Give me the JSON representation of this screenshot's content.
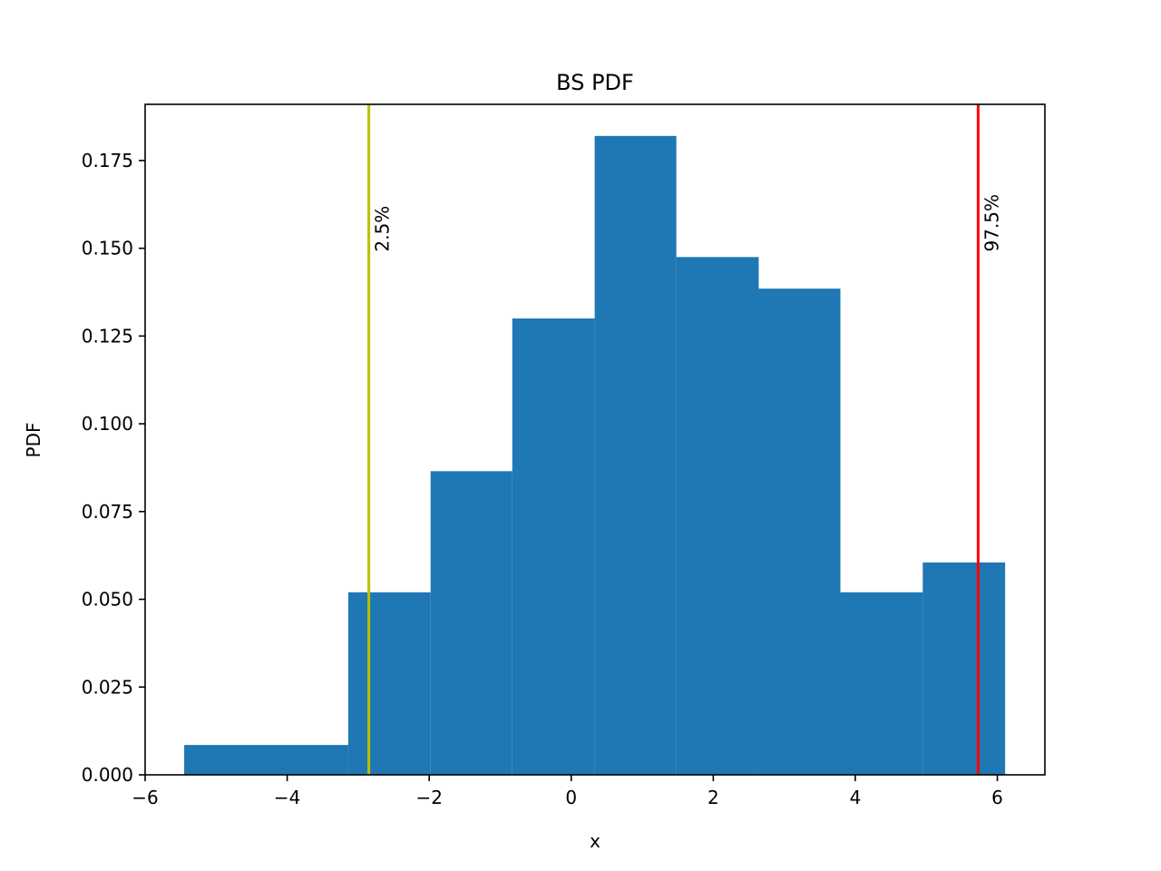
{
  "chart_data": {
    "type": "bar",
    "title": "BS PDF",
    "xlabel": "x",
    "ylabel": "PDF",
    "xlim": [
      -6.0,
      6.67
    ],
    "ylim": [
      0.0,
      0.191
    ],
    "grid": false,
    "bar_color": "#1f77b4",
    "bins": [
      {
        "x0": -5.45,
        "x1": -3.14,
        "density": 0.0085
      },
      {
        "x0": -3.14,
        "x1": -1.98,
        "density": 0.052
      },
      {
        "x0": -1.98,
        "x1": -0.83,
        "density": 0.0865
      },
      {
        "x0": -0.83,
        "x1": 0.33,
        "density": 0.13
      },
      {
        "x0": 0.33,
        "x1": 1.48,
        "density": 0.182
      },
      {
        "x0": 1.48,
        "x1": 2.64,
        "density": 0.1475
      },
      {
        "x0": 2.64,
        "x1": 3.79,
        "density": 0.1385
      },
      {
        "x0": 3.79,
        "x1": 4.95,
        "density": 0.052
      },
      {
        "x0": 4.95,
        "x1": 6.11,
        "density": 0.0605
      }
    ],
    "x_ticks": [
      {
        "value": -6,
        "label": "−6"
      },
      {
        "value": -4,
        "label": "−4"
      },
      {
        "value": -2,
        "label": "−2"
      },
      {
        "value": 0,
        "label": "0"
      },
      {
        "value": 2,
        "label": "2"
      },
      {
        "value": 4,
        "label": "4"
      },
      {
        "value": 6,
        "label": "6"
      }
    ],
    "y_ticks": [
      {
        "value": 0.0,
        "label": "0.000"
      },
      {
        "value": 0.025,
        "label": "0.025"
      },
      {
        "value": 0.05,
        "label": "0.050"
      },
      {
        "value": 0.075,
        "label": "0.075"
      },
      {
        "value": 0.1,
        "label": "0.100"
      },
      {
        "value": 0.125,
        "label": "0.125"
      },
      {
        "value": 0.15,
        "label": "0.150"
      },
      {
        "value": 0.175,
        "label": "0.175"
      }
    ],
    "vlines": [
      {
        "x": -2.85,
        "label": "2.5%",
        "color": "#bfbf00",
        "label_y": 0.149
      },
      {
        "x": 5.73,
        "label": "97.5%",
        "color": "#ff0000",
        "label_y": 0.149
      }
    ]
  }
}
